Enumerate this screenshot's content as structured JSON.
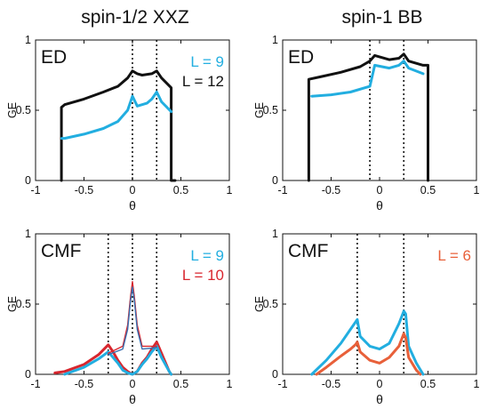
{
  "column_titles": [
    "spin-1/2 XXZ",
    "spin-1 BB"
  ],
  "colors": {
    "cyan": "#22aee0",
    "black": "#111111",
    "red": "#d8262e",
    "orange": "#e8603a",
    "blue_thin": "#3a6fb0"
  },
  "chart_data": [
    {
      "type": "line",
      "panel_label": "ED",
      "xlabel": "θ",
      "ylabel": "GE",
      "xlim": [
        -1,
        1
      ],
      "ylim": [
        0,
        1
      ],
      "xticks": [
        "-1",
        "-0.5",
        "0",
        "0.5",
        "1"
      ],
      "yticks": [
        "0",
        "0.5",
        "1"
      ],
      "vlines": [
        0,
        0.25
      ],
      "series": [
        {
          "name": "L = 12",
          "color": "#111111",
          "x": [
            -0.733,
            -0.733,
            -0.7,
            -0.5,
            -0.3,
            -0.15,
            -0.05,
            0.0,
            0.05,
            0.1,
            0.2,
            0.25,
            0.3,
            0.4,
            0.4,
            0.44
          ],
          "y": [
            0,
            0.52,
            0.54,
            0.58,
            0.63,
            0.67,
            0.73,
            0.78,
            0.76,
            0.75,
            0.76,
            0.78,
            0.73,
            0.66,
            0.0,
            0.0
          ]
        },
        {
          "name": "L = 9",
          "color": "#22aee0",
          "x": [
            -0.73,
            -0.7,
            -0.5,
            -0.3,
            -0.15,
            -0.05,
            0.0,
            0.05,
            0.15,
            0.2,
            0.25,
            0.3,
            0.4
          ],
          "y": [
            0.3,
            0.3,
            0.33,
            0.37,
            0.42,
            0.5,
            0.6,
            0.53,
            0.55,
            0.58,
            0.63,
            0.56,
            0.49
          ]
        }
      ]
    },
    {
      "type": "line",
      "panel_label": "ED",
      "xlabel": "θ",
      "ylabel": "GE",
      "xlim": [
        -1,
        1
      ],
      "ylim": [
        0,
        1
      ],
      "xticks": [
        "-1",
        "-0.5",
        "0",
        "0.5",
        "1"
      ],
      "yticks": [
        "0",
        "0.5",
        "1"
      ],
      "vlines": [
        -0.1,
        0.25
      ],
      "series": [
        {
          "name": "",
          "color": "#111111",
          "x": [
            -0.73,
            -0.73,
            -0.6,
            -0.4,
            -0.2,
            -0.1,
            -0.05,
            0.1,
            0.2,
            0.25,
            0.3,
            0.45,
            0.5,
            0.5
          ],
          "y": [
            0,
            0.72,
            0.74,
            0.77,
            0.81,
            0.85,
            0.89,
            0.86,
            0.87,
            0.9,
            0.85,
            0.82,
            0.82,
            0
          ]
        },
        {
          "name": "",
          "color": "#22aee0",
          "x": [
            -0.7,
            -0.5,
            -0.3,
            -0.1,
            -0.05,
            0.1,
            0.2,
            0.25,
            0.3,
            0.45
          ],
          "y": [
            0.6,
            0.61,
            0.63,
            0.67,
            0.82,
            0.8,
            0.82,
            0.85,
            0.8,
            0.76
          ]
        }
      ]
    },
    {
      "type": "line",
      "panel_label": "CMF",
      "xlabel": "θ",
      "ylabel": "GE",
      "xlim": [
        -1,
        1
      ],
      "ylim": [
        0,
        1
      ],
      "xticks": [
        "-1",
        "-0.5",
        "0",
        "0.5",
        "1"
      ],
      "yticks": [
        "0",
        "0.5",
        "1"
      ],
      "vlines": [
        -0.25,
        0.0,
        0.25
      ],
      "series": [
        {
          "name": "L = 10",
          "color": "#d8262e",
          "width": 3,
          "x": [
            -0.8,
            -0.7,
            -0.5,
            -0.35,
            -0.25,
            -0.2,
            -0.15,
            -0.1,
            -0.05,
            0.0,
            0.05,
            0.1,
            0.15,
            0.2,
            0.25,
            0.3,
            0.38,
            0.4
          ],
          "y": [
            0.01,
            0.02,
            0.07,
            0.14,
            0.21,
            0.16,
            0.1,
            0.05,
            0.02,
            0.0,
            0.02,
            0.08,
            0.12,
            0.18,
            0.23,
            0.15,
            0.02,
            0.0
          ]
        },
        {
          "name": "L = 9",
          "color": "#22aee0",
          "width": 3,
          "x": [
            -0.7,
            -0.5,
            -0.35,
            -0.25,
            -0.2,
            -0.15,
            -0.1,
            -0.05,
            0.0,
            0.05,
            0.1,
            0.15,
            0.2,
            0.25,
            0.3,
            0.38,
            0.4
          ],
          "y": [
            0.0,
            0.05,
            0.11,
            0.16,
            0.12,
            0.08,
            0.03,
            0.01,
            0.0,
            0.02,
            0.07,
            0.11,
            0.16,
            0.2,
            0.12,
            0.02,
            0.0
          ]
        },
        {
          "name": "",
          "color": "#d8262e",
          "width": 1.4,
          "x": [
            -0.25,
            -0.1,
            -0.05,
            -0.02,
            0.0,
            0.02,
            0.05,
            0.1,
            0.25
          ],
          "y": [
            0.15,
            0.2,
            0.35,
            0.55,
            0.66,
            0.55,
            0.35,
            0.2,
            0.2
          ]
        },
        {
          "name": "",
          "color": "#3a6fb0",
          "width": 1.4,
          "x": [
            -0.25,
            -0.1,
            -0.05,
            -0.02,
            0.0,
            0.02,
            0.05,
            0.1,
            0.25
          ],
          "y": [
            0.14,
            0.18,
            0.32,
            0.52,
            0.62,
            0.52,
            0.32,
            0.18,
            0.19
          ]
        }
      ]
    },
    {
      "type": "line",
      "panel_label": "CMF",
      "xlabel": "θ",
      "ylabel": "GE",
      "xlim": [
        -1,
        1
      ],
      "ylim": [
        0,
        1
      ],
      "xticks": [
        "-1",
        "-0.5",
        "0",
        "0.5",
        "1"
      ],
      "yticks": [
        "0",
        "0.5",
        "1"
      ],
      "vlines": [
        -0.23,
        0.25
      ],
      "series": [
        {
          "name": "",
          "color": "#22aee0",
          "width": 3,
          "x": [
            -0.7,
            -0.55,
            -0.4,
            -0.3,
            -0.25,
            -0.23,
            -0.2,
            -0.1,
            0.0,
            0.1,
            0.2,
            0.25,
            0.27,
            0.3,
            0.38,
            0.45
          ],
          "y": [
            0.0,
            0.1,
            0.22,
            0.32,
            0.37,
            0.39,
            0.27,
            0.2,
            0.18,
            0.22,
            0.36,
            0.45,
            0.43,
            0.2,
            0.08,
            0.0
          ]
        },
        {
          "name": "L = 6",
          "color": "#e8603a",
          "width": 3,
          "x": [
            -0.65,
            -0.55,
            -0.4,
            -0.3,
            -0.25,
            -0.23,
            -0.2,
            -0.1,
            0.0,
            0.1,
            0.2,
            0.25,
            0.27,
            0.3,
            0.38,
            0.42
          ],
          "y": [
            0.0,
            0.05,
            0.13,
            0.18,
            0.21,
            0.23,
            0.16,
            0.1,
            0.08,
            0.12,
            0.2,
            0.29,
            0.26,
            0.12,
            0.03,
            0.0
          ]
        }
      ]
    }
  ],
  "legends": [
    [
      {
        "text": "L = 9",
        "color": "#22aee0"
      },
      {
        "text": "L = 12",
        "color": "#111111"
      }
    ],
    [],
    [
      {
        "text": "L = 9",
        "color": "#22aee0"
      },
      {
        "text": "L = 10",
        "color": "#d8262e"
      }
    ],
    [
      {
        "text": "L = 6",
        "color": "#e8603a"
      }
    ]
  ]
}
